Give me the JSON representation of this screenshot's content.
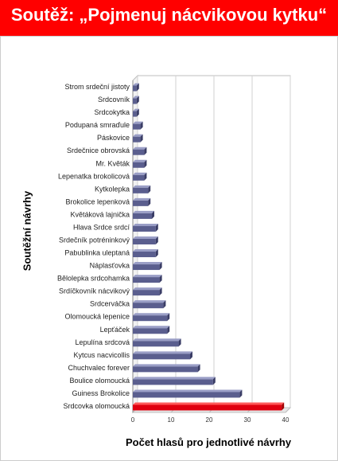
{
  "header": {
    "title": "Soutěž: „Pojmenuj nácvikovou kytku“"
  },
  "colors": {
    "title_background": "#ff0000",
    "bar_default": "#5a5e8e",
    "bar_highlight": "#e0000f"
  },
  "chart_data": {
    "type": "bar",
    "orientation": "horizontal",
    "title": "",
    "xlabel": "Počet hlasů pro jednotlivé návrhy",
    "ylabel": "Soutěžní návrhy",
    "xlim": [
      0,
      40
    ],
    "xticks": [
      0,
      10,
      20,
      30,
      40
    ],
    "grid": true,
    "legend": "none",
    "highlighted_category": "Srdcovka olomoucká",
    "categories": [
      "Strom srdeční jistoty",
      "Srdcovník",
      "Srdcokytka",
      "Podupaná smraďule",
      "Páskovice",
      "Srdečnice obrovská",
      "Mr. Květák",
      "Lepenatka brokolicová",
      "Kytkolepka",
      "Brokolice lepenková",
      "Květáková lajnička",
      "Hlava Srdce srdcí",
      "Srdečník potréninkový",
      "Pabublinka uleptaná",
      "Náplasťovka",
      "Bělolepka srdcohamka",
      "Srdíčkovník nácvikový",
      "Srdcerváčka",
      "Olomoucká lepenice",
      "Lepťáček",
      "Lepulína srdcová",
      "Kytcus nacvicollis",
      "Chuchvalec forever",
      "Boulice olomoucká",
      "Guiness Brokolice",
      "Srdcovka olomoucká"
    ],
    "values": [
      1,
      1,
      1,
      2,
      2,
      3,
      3,
      3,
      4,
      4,
      5,
      6,
      6,
      6,
      7,
      7,
      7,
      8,
      9,
      9,
      12,
      15,
      17,
      21,
      28,
      39
    ]
  }
}
